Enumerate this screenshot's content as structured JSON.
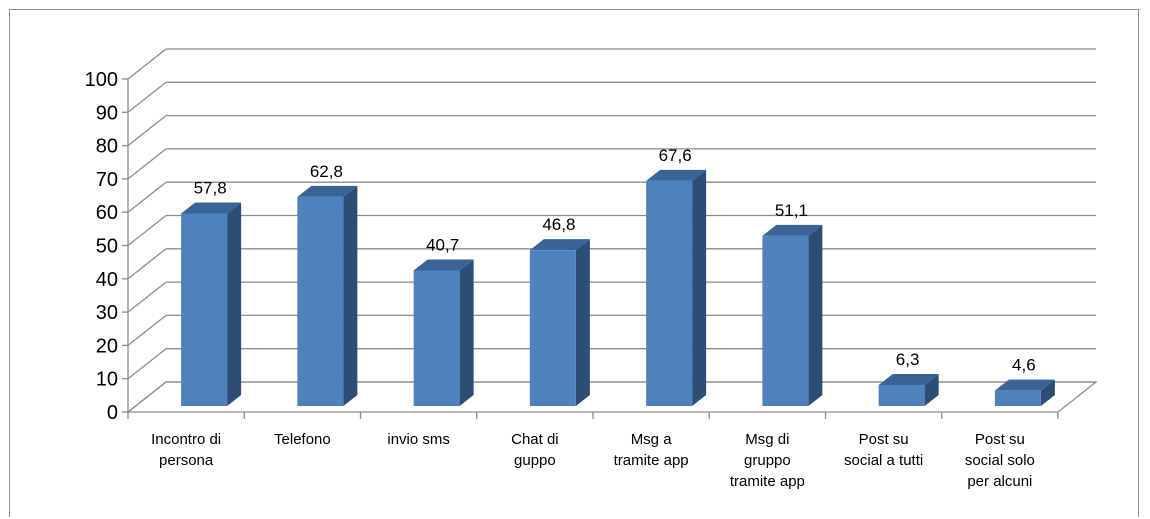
{
  "chart_data": {
    "type": "bar",
    "style": "3d-column",
    "categories": [
      [
        "Incontro di",
        "persona"
      ],
      [
        "Telefono"
      ],
      [
        "invio sms"
      ],
      [
        "Chat di",
        "guppo"
      ],
      [
        "Msg a",
        "tramite app"
      ],
      [
        "Msg di",
        "gruppo",
        "tramite app"
      ],
      [
        "Post su",
        "social a tutti"
      ],
      [
        "Post su",
        "social solo",
        "per alcuni"
      ]
    ],
    "values": [
      57.8,
      62.8,
      40.7,
      46.8,
      67.6,
      51.1,
      6.3,
      4.6
    ],
    "data_labels": [
      "57,8",
      "62,8",
      "40,7",
      "46,8",
      "67,6",
      "51,1",
      "6,3",
      "4,6"
    ],
    "ylim": [
      0,
      100
    ],
    "yticks": [
      "0",
      "10",
      "20",
      "30",
      "40",
      "50",
      "60",
      "70",
      "80",
      "90",
      "100"
    ],
    "grid": true,
    "legend": "none",
    "colors": {
      "bar_front": "#4f81bd",
      "bar_side": "#2c4d75",
      "bar_top": "#3a6497",
      "grid": "#8c8c8c"
    }
  }
}
